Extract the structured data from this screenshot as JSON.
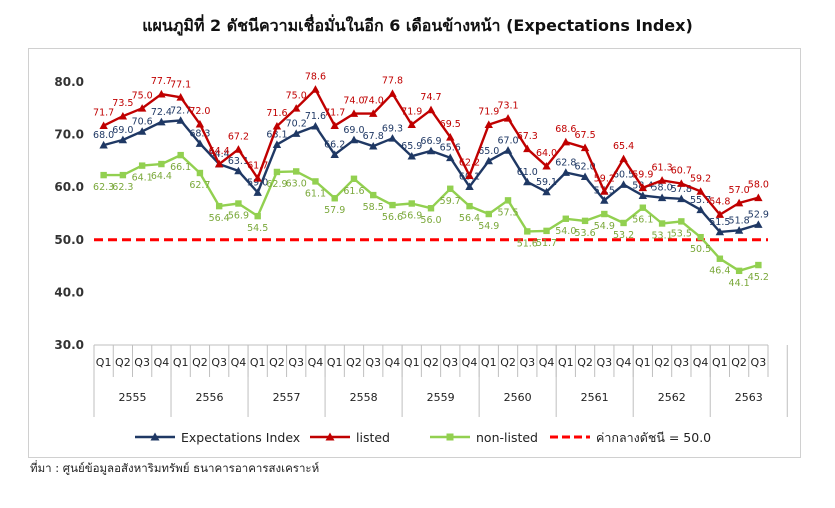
{
  "title": "แผนภูมิที่ 2 ดัชนีความเชื่อมั่นในอีก 6 เดือนข้างหน้า (Expectations Index)",
  "source": "ที่มา : ศูนย์ข้อมูลอสังหาริมทรัพย์ ธนาคารอาคารสงเคราะห์",
  "colors": {
    "expectations": "#1f3864",
    "listed": "#c00000",
    "non_listed": "#92d050",
    "threshold": "#ff0000"
  },
  "chart_data": {
    "type": "line",
    "years": [
      "2555",
      "2556",
      "2557",
      "2558",
      "2559",
      "2560",
      "2561",
      "2562",
      "2563"
    ],
    "quarters": [
      "Q1",
      "Q2",
      "Q3",
      "Q4"
    ],
    "ylim": [
      30,
      80
    ],
    "yticks": [
      "30.0",
      "40.0",
      "50.0",
      "60.0",
      "70.0",
      "80.0"
    ],
    "grid": false,
    "legend_position": "bottom",
    "series": [
      {
        "key": "expectations",
        "name": "Expectations Index",
        "marker": "triangle",
        "values": [
          68.0,
          69.0,
          70.6,
          72.4,
          72.7,
          68.3,
          64.4,
          63.1,
          59.0,
          68.1,
          70.2,
          71.6,
          66.2,
          69.0,
          67.8,
          69.3,
          65.9,
          66.9,
          65.6,
          60.1,
          65.0,
          67.0,
          61.0,
          59.1,
          62.8,
          62.0,
          57.5,
          60.5,
          58.4,
          58.0,
          57.8,
          55.7,
          51.5,
          51.8,
          52.9
        ]
      },
      {
        "key": "listed",
        "name": "listed",
        "marker": "triangle",
        "values": [
          71.7,
          73.5,
          75.0,
          77.7,
          77.1,
          72.0,
          64.4,
          67.2,
          61.7,
          71.6,
          75.0,
          78.6,
          71.7,
          74.0,
          74.0,
          77.8,
          71.9,
          74.7,
          69.5,
          62.2,
          71.9,
          73.1,
          67.3,
          64.0,
          68.6,
          67.5,
          59.2,
          65.4,
          59.9,
          61.3,
          60.7,
          59.2,
          54.8,
          57.0,
          58.0
        ]
      },
      {
        "key": "non_listed",
        "name": "non-listed",
        "marker": "square",
        "values": [
          62.3,
          62.3,
          64.1,
          64.4,
          66.1,
          62.7,
          56.4,
          56.9,
          54.5,
          62.9,
          63.0,
          61.1,
          57.9,
          61.6,
          58.5,
          56.6,
          56.9,
          56.0,
          59.7,
          56.4,
          54.9,
          57.5,
          51.6,
          51.7,
          54.0,
          53.6,
          54.9,
          53.2,
          56.1,
          53.1,
          53.5,
          50.5,
          46.4,
          44.1,
          45.2
        ]
      }
    ],
    "threshold": {
      "value": 50.0,
      "label": "ค่ากลางดัชนี = 50.0"
    }
  }
}
